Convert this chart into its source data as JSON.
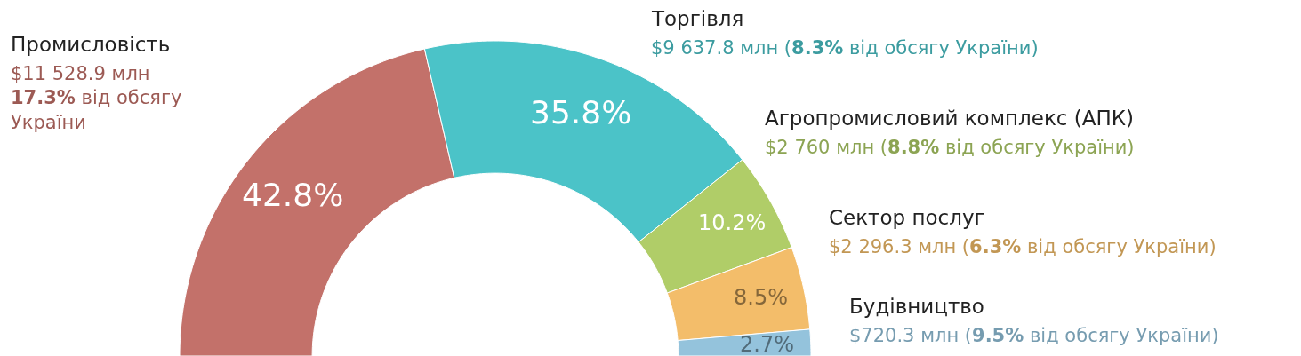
{
  "chart_data": {
    "type": "donut",
    "categories": [
      "Промисловість",
      "Торгівля",
      "Агропромисловий комплекс (АПК)",
      "Сектор послуг",
      "Будівництво"
    ],
    "values": [
      42.8,
      35.8,
      10.2,
      8.5,
      2.7
    ],
    "colors": [
      "#c3716a",
      "#4bc3c8",
      "#b0cd68",
      "#f3bd6a",
      "#94c3dc"
    ],
    "value_labels": [
      "42.8%",
      "35.8%",
      "10.2%",
      "8.5%",
      "2.7%"
    ],
    "annotations": [
      "$11 528.9 млн 17.3% від обсягу України",
      "$9 637.8 млн (8.3% від обсягу України)",
      "$2 760 млн (8.8% від обсягу України)",
      "$2 296.3 млн (6.3% від обсягу України)",
      "$720.3 млн (9.5% від обсягу України)"
    ]
  }
}
